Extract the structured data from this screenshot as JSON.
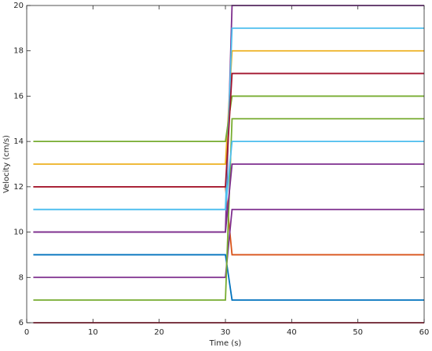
{
  "chart_data": {
    "type": "line",
    "xlabel": "Time (s)",
    "ylabel": "Velocity (cm/s)",
    "x": [
      1,
      30,
      31,
      60
    ],
    "xlim": [
      0,
      60
    ],
    "xticks": [
      0,
      10,
      20,
      30,
      40,
      50,
      60
    ],
    "ylim": [
      6,
      20
    ],
    "yticks": [
      6,
      8,
      10,
      12,
      14,
      16,
      18,
      20
    ],
    "grid": false,
    "series": [
      {
        "color": "#0072BD",
        "values": [
          9,
          9,
          7,
          7
        ]
      },
      {
        "color": "#D95319",
        "values": [
          12,
          12,
          9,
          9
        ]
      },
      {
        "color": "#EDB120",
        "values": [
          13,
          13,
          18,
          18
        ]
      },
      {
        "color": "#7E2F8E",
        "values": [
          10,
          10,
          20,
          20
        ]
      },
      {
        "color": "#77AC30",
        "values": [
          14,
          14,
          16,
          16
        ]
      },
      {
        "color": "#4DBEEE",
        "values": [
          11,
          11,
          19,
          19
        ]
      },
      {
        "color": "#A2142F",
        "values": [
          12,
          12,
          17,
          17
        ]
      },
      {
        "color": "#7E2F8E",
        "values": [
          8,
          8,
          11,
          11
        ]
      },
      {
        "color": "#77AC30",
        "values": [
          7,
          7,
          15,
          15
        ]
      },
      {
        "color": "#4DBEEE",
        "values": [
          11,
          11,
          14,
          14
        ]
      },
      {
        "color": "#7E2F8E",
        "values": [
          10,
          10,
          13,
          13
        ]
      },
      {
        "color": "#A2142F",
        "values": [
          6,
          6,
          6,
          6
        ]
      }
    ]
  }
}
